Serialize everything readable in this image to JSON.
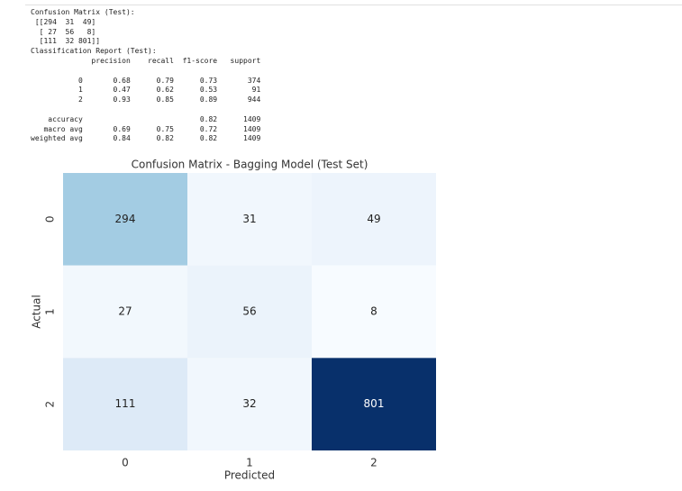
{
  "console": {
    "matrix_text": [
      "Confusion Matrix (Test):",
      " [[294  31  49]",
      "  [ 27  56   8]",
      "  [111  32 801]]"
    ],
    "report_title": "Classification Report (Test):",
    "report_header": "              precision    recall  f1-score   support",
    "class_rows": [
      "           0       0.68      0.79      0.73       374",
      "           1       0.47      0.62      0.53        91",
      "           2       0.93      0.85      0.89       944"
    ],
    "summary_rows": [
      "    accuracy                           0.82      1409",
      "   macro avg       0.69      0.75      0.72      1409",
      "weighted avg       0.84      0.82      0.82      1409"
    ]
  },
  "chart_data": {
    "type": "heatmap",
    "title": "Confusion Matrix - Bagging Model (Test Set)",
    "x_label": "Predicted",
    "y_label": "Actual",
    "x_categories": [
      "0",
      "1",
      "2"
    ],
    "y_categories": [
      "0",
      "1",
      "2"
    ],
    "values": [
      [
        294,
        31,
        49
      ],
      [
        27,
        56,
        8
      ],
      [
        111,
        32,
        801
      ]
    ],
    "colormap": "Blues"
  }
}
